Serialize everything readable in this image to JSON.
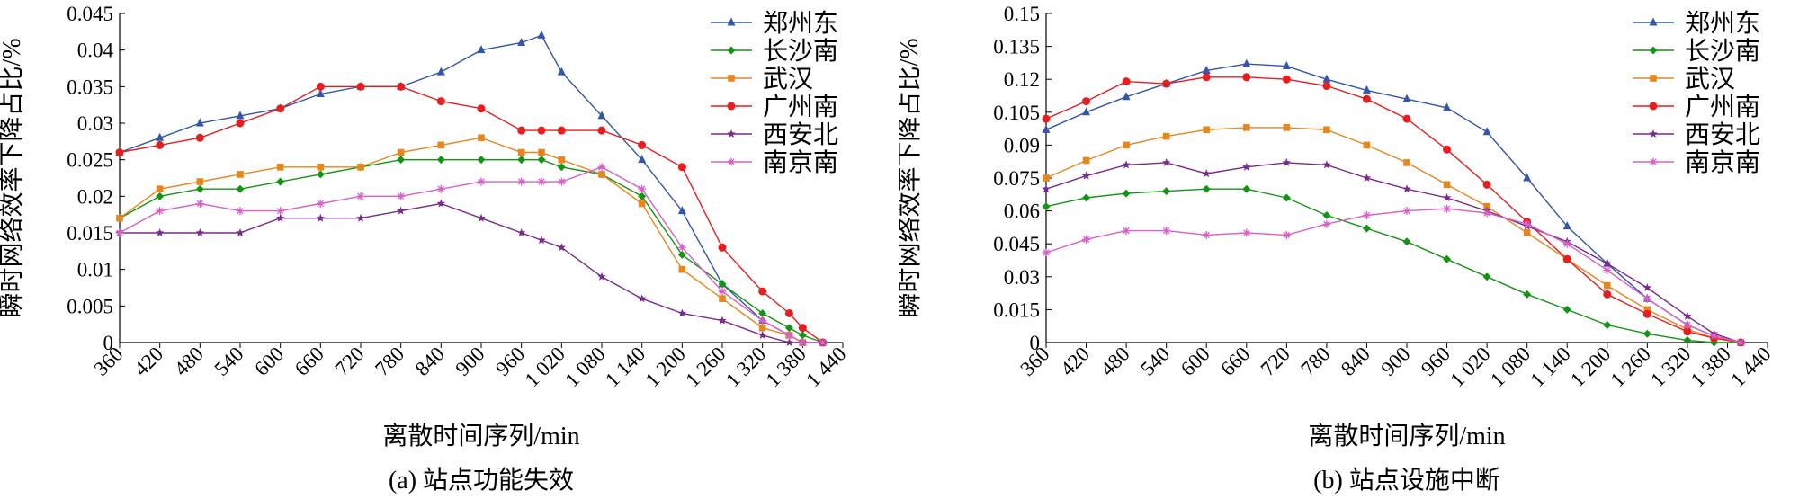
{
  "colors": {
    "zhengzhou_dong": "#3355aa",
    "changsha_nan": "#149414",
    "wuhan": "#e6861c",
    "guangzhou_nan": "#e61e1e",
    "xian_bei": "#7a2a8c",
    "nanjing_nan": "#d860c8"
  },
  "chart_data": [
    {
      "type": "line",
      "caption": "(a) 站点功能失效",
      "xlabel": "离散时间序列/min",
      "ylabel": "瞬时网络效率下降占比/%",
      "xlim": [
        360,
        1440
      ],
      "ylim": [
        0,
        0.045
      ],
      "xticks": [
        360,
        420,
        480,
        540,
        600,
        660,
        720,
        780,
        840,
        900,
        960,
        1020,
        1080,
        1140,
        1200,
        1260,
        1320,
        1380,
        1440
      ],
      "xtick_labels": [
        "360",
        "420",
        "480",
        "540",
        "600",
        "660",
        "720",
        "780",
        "840",
        "900",
        "960",
        "1 020",
        "1 080",
        "1 140",
        "1 200",
        "1 260",
        "1 320",
        "1 380",
        "1 440"
      ],
      "yticks": [
        0,
        0.005,
        0.01,
        0.015,
        0.02,
        0.025,
        0.03,
        0.035,
        0.04,
        0.045
      ],
      "ytick_labels": [
        "0",
        "0.005",
        "0.01",
        "0.015",
        "0.02",
        "0.025",
        "0.03",
        "0.035",
        "0.04",
        "0.045"
      ],
      "legend_position": "top-right",
      "x": [
        360,
        420,
        480,
        540,
        600,
        660,
        720,
        780,
        840,
        900,
        960,
        990,
        1020,
        1080,
        1140,
        1200,
        1260,
        1320,
        1360,
        1380,
        1410
      ],
      "series": [
        {
          "name": "郑州东",
          "color_key": "zhengzhou_dong",
          "marker": "triangle",
          "values": [
            0.026,
            0.028,
            0.03,
            0.031,
            0.032,
            0.034,
            0.035,
            0.035,
            0.037,
            0.04,
            0.041,
            0.042,
            0.037,
            0.031,
            0.025,
            0.018,
            0.008,
            0.003,
            0.001,
            0.0,
            0.0
          ]
        },
        {
          "name": "长沙南",
          "color_key": "changsha_nan",
          "marker": "diamond",
          "values": [
            0.017,
            0.02,
            0.021,
            0.021,
            0.022,
            0.023,
            0.024,
            0.025,
            0.025,
            0.025,
            0.025,
            0.025,
            0.024,
            0.023,
            0.02,
            0.012,
            0.008,
            0.004,
            0.002,
            0.001,
            0.0
          ]
        },
        {
          "name": "武汉",
          "color_key": "wuhan",
          "marker": "square",
          "values": [
            0.017,
            0.021,
            0.022,
            0.023,
            0.024,
            0.024,
            0.024,
            0.026,
            0.027,
            0.028,
            0.026,
            0.026,
            0.025,
            0.023,
            0.019,
            0.01,
            0.006,
            0.002,
            0.001,
            0.0,
            0.0
          ]
        },
        {
          "name": "广州南",
          "color_key": "guangzhou_nan",
          "marker": "circle",
          "values": [
            0.026,
            0.027,
            0.028,
            0.03,
            0.032,
            0.035,
            0.035,
            0.035,
            0.033,
            0.032,
            0.029,
            0.029,
            0.029,
            0.029,
            0.027,
            0.024,
            0.013,
            0.007,
            0.004,
            0.002,
            0.0
          ]
        },
        {
          "name": "西安北",
          "color_key": "xian_bei",
          "marker": "star",
          "values": [
            0.015,
            0.015,
            0.015,
            0.015,
            0.017,
            0.017,
            0.017,
            0.018,
            0.019,
            0.017,
            0.015,
            0.014,
            0.013,
            0.009,
            0.006,
            0.004,
            0.003,
            0.001,
            0.0,
            0.0,
            0.0
          ]
        },
        {
          "name": "南京南",
          "color_key": "nanjing_nan",
          "marker": "asterisk",
          "values": [
            0.015,
            0.018,
            0.019,
            0.018,
            0.018,
            0.019,
            0.02,
            0.02,
            0.021,
            0.022,
            0.022,
            0.022,
            0.022,
            0.024,
            0.021,
            0.013,
            0.007,
            0.003,
            0.001,
            0.0,
            0.0
          ]
        }
      ]
    },
    {
      "type": "line",
      "caption": "(b) 站点设施中断",
      "xlabel": "离散时间序列/min",
      "ylabel": "瞬时网络效率下降占比/%",
      "xlim": [
        360,
        1440
      ],
      "ylim": [
        0,
        0.15
      ],
      "xticks": [
        360,
        420,
        480,
        540,
        600,
        660,
        720,
        780,
        840,
        900,
        960,
        1020,
        1080,
        1140,
        1200,
        1260,
        1320,
        1380,
        1440
      ],
      "xtick_labels": [
        "360",
        "420",
        "480",
        "540",
        "600",
        "660",
        "720",
        "780",
        "840",
        "900",
        "960",
        "1 020",
        "1 080",
        "1 140",
        "1 200",
        "1 260",
        "1 320",
        "1 380",
        "1 440"
      ],
      "yticks": [
        0,
        0.015,
        0.03,
        0.045,
        0.06,
        0.075,
        0.09,
        0.105,
        0.12,
        0.135,
        0.15
      ],
      "ytick_labels": [
        "0",
        "0.015",
        "0.03",
        "0.045",
        "0.06",
        "0.075",
        "0.09",
        "0.105",
        "0.12",
        "0.135",
        "0.15"
      ],
      "legend_position": "top-right",
      "x": [
        360,
        420,
        480,
        540,
        600,
        660,
        720,
        780,
        840,
        900,
        960,
        1020,
        1080,
        1140,
        1200,
        1260,
        1320,
        1360,
        1400
      ],
      "series": [
        {
          "name": "郑州东",
          "color_key": "zhengzhou_dong",
          "marker": "triangle",
          "values": [
            0.097,
            0.105,
            0.112,
            0.118,
            0.124,
            0.127,
            0.126,
            0.12,
            0.115,
            0.111,
            0.107,
            0.096,
            0.075,
            0.053,
            0.036,
            0.02,
            0.008,
            0.003,
            0.0
          ]
        },
        {
          "name": "长沙南",
          "color_key": "changsha_nan",
          "marker": "diamond",
          "values": [
            0.062,
            0.066,
            0.068,
            0.069,
            0.07,
            0.07,
            0.066,
            0.058,
            0.052,
            0.046,
            0.038,
            0.03,
            0.022,
            0.015,
            0.008,
            0.004,
            0.001,
            0.0,
            0.0
          ]
        },
        {
          "name": "武汉",
          "color_key": "wuhan",
          "marker": "square",
          "values": [
            0.075,
            0.083,
            0.09,
            0.094,
            0.097,
            0.098,
            0.098,
            0.097,
            0.09,
            0.082,
            0.072,
            0.062,
            0.05,
            0.038,
            0.026,
            0.015,
            0.006,
            0.002,
            0.0
          ]
        },
        {
          "name": "广州南",
          "color_key": "guangzhou_nan",
          "marker": "circle",
          "values": [
            0.102,
            0.11,
            0.119,
            0.118,
            0.121,
            0.121,
            0.12,
            0.117,
            0.111,
            0.102,
            0.088,
            0.072,
            0.055,
            0.038,
            0.022,
            0.013,
            0.005,
            0.002,
            0.0
          ]
        },
        {
          "name": "西安北",
          "color_key": "xian_bei",
          "marker": "star",
          "values": [
            0.07,
            0.076,
            0.081,
            0.082,
            0.077,
            0.08,
            0.082,
            0.081,
            0.075,
            0.07,
            0.066,
            0.06,
            0.053,
            0.046,
            0.036,
            0.025,
            0.012,
            0.004,
            0.0
          ]
        },
        {
          "name": "南京南",
          "color_key": "nanjing_nan",
          "marker": "asterisk",
          "values": [
            0.041,
            0.047,
            0.051,
            0.051,
            0.049,
            0.05,
            0.049,
            0.054,
            0.058,
            0.06,
            0.061,
            0.059,
            0.054,
            0.045,
            0.033,
            0.02,
            0.008,
            0.003,
            0.0
          ]
        }
      ]
    }
  ]
}
